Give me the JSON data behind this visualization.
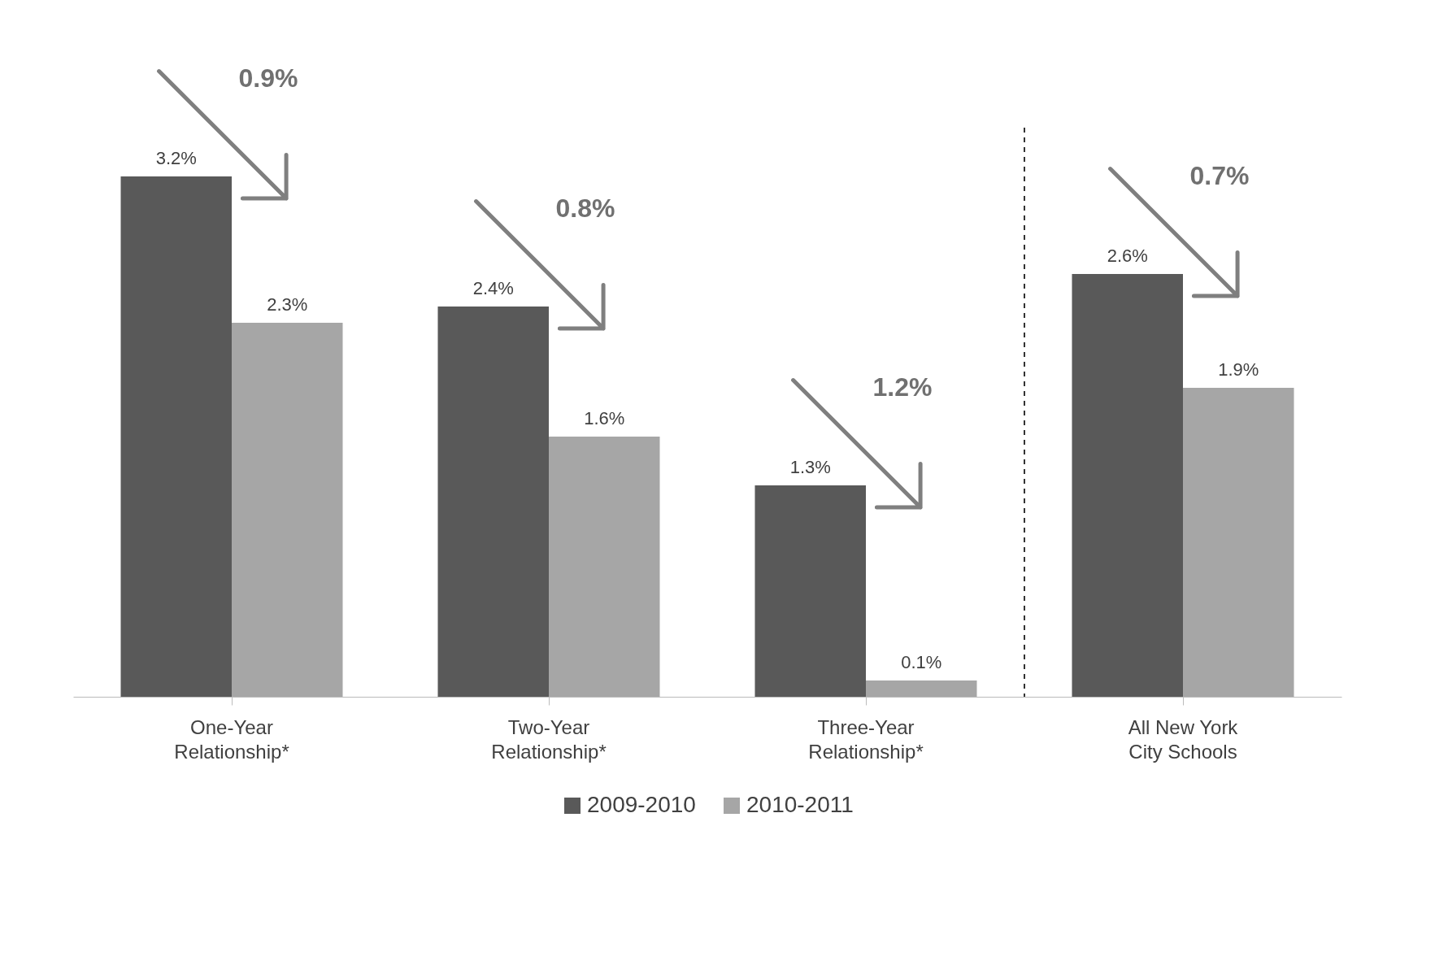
{
  "chart_data": {
    "type": "bar",
    "categories": [
      "One-Year Relationship*",
      "Two-Year Relationship*",
      "Three-Year Relationship*",
      "All New York City Schools"
    ],
    "series": [
      {
        "name": "2009-2010",
        "color": "#595959",
        "values": [
          3.2,
          2.4,
          1.3,
          2.6
        ],
        "value_labels": [
          "3.2%",
          "2.4%",
          "1.3%",
          "2.6%"
        ]
      },
      {
        "name": "2010-2011",
        "color": "#a6a6a6",
        "values": [
          2.3,
          1.6,
          0.1,
          1.9
        ],
        "value_labels": [
          "2.3%",
          "1.6%",
          "0.1%",
          "1.9%"
        ]
      }
    ],
    "annotations": [
      "0.9%",
      "0.8%",
      "1.2%",
      "0.7%"
    ],
    "legend": "bottom",
    "tick_labels": "x"
  }
}
